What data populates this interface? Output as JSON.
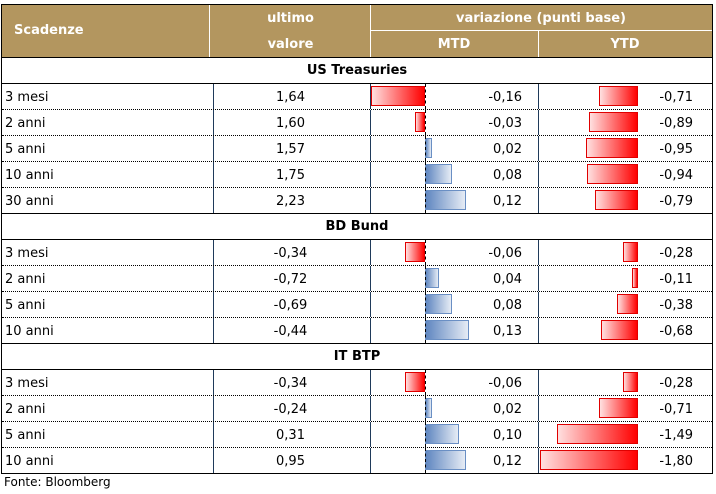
{
  "header": {
    "scadenze": "Scadenze",
    "ultimo_1": "ultimo",
    "ultimo_2": "valore",
    "variazione": "variazione (punti base)",
    "mtd": "MTD",
    "ytd": "YTD"
  },
  "sections": [
    {
      "title": "US Treasuries",
      "rows": [
        {
          "label": "3 mesi",
          "value": "1,64",
          "mtd": "-0,16",
          "ytd": "-0,71"
        },
        {
          "label": "2 anni",
          "value": "1,60",
          "mtd": "-0,03",
          "ytd": "-0,89"
        },
        {
          "label": "5 anni",
          "value": "1,57",
          "mtd": "0,02",
          "ytd": "-0,95"
        },
        {
          "label": "10 anni",
          "value": "1,75",
          "mtd": "0,08",
          "ytd": "-0,94"
        },
        {
          "label": "30 anni",
          "value": "2,23",
          "mtd": "0,12",
          "ytd": "-0,79"
        }
      ]
    },
    {
      "title": "BD Bund",
      "rows": [
        {
          "label": "3 mesi",
          "value": "-0,34",
          "mtd": "-0,06",
          "ytd": "-0,28"
        },
        {
          "label": "2 anni",
          "value": "-0,72",
          "mtd": "0,04",
          "ytd": "-0,11"
        },
        {
          "label": "5 anni",
          "value": "-0,69",
          "mtd": "0,08",
          "ytd": "-0,38"
        },
        {
          "label": "10 anni",
          "value": "-0,44",
          "mtd": "0,13",
          "ytd": "-0,68"
        }
      ]
    },
    {
      "title": "IT BTP",
      "rows": [
        {
          "label": "3 mesi",
          "value": "-0,34",
          "mtd": "-0,06",
          "ytd": "-0,28"
        },
        {
          "label": "2 anni",
          "value": "-0,24",
          "mtd": "0,02",
          "ytd": "-0,71"
        },
        {
          "label": "5 anni",
          "value": "0,31",
          "mtd": "0,10",
          "ytd": "-1,49"
        },
        {
          "label": "10 anni",
          "value": "0,95",
          "mtd": "0,12",
          "ytd": "-1,80"
        }
      ]
    }
  ],
  "footer": "Fonte: Bloomberg"
}
